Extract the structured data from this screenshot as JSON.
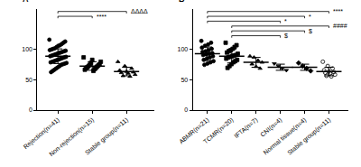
{
  "chart_data": [
    {
      "type": "scatter",
      "panel": "A",
      "color": "#000000",
      "grid": false,
      "categories": [
        "Rejection(n=41)",
        "Non-rejection(n=15)",
        "Stable group(n=11)"
      ],
      "groups": [
        {
          "marker": "circle",
          "values": [
            115,
            112,
            110,
            108,
            106,
            105,
            103,
            101,
            100,
            99,
            98,
            97,
            96,
            95,
            94,
            93,
            92,
            91,
            90,
            89,
            88,
            87,
            86,
            85,
            84,
            83,
            82,
            81,
            80,
            79,
            78,
            77,
            76,
            75,
            74,
            72,
            70,
            68,
            66,
            64,
            62
          ],
          "mean": 88,
          "sd": 12
        },
        {
          "marker": "square",
          "values": [
            86,
            82,
            79,
            77,
            75,
            74,
            73,
            72,
            71,
            70,
            69,
            68,
            67,
            66,
            64
          ],
          "mean": 72,
          "sd": 7
        },
        {
          "marker": "triangle-up",
          "values": [
            79,
            72,
            68,
            65,
            63,
            62,
            61,
            60,
            58,
            56,
            55
          ],
          "mean": 63,
          "sd": 7
        }
      ],
      "ylim": [
        0,
        165
      ],
      "yticks": [
        0,
        50,
        100
      ],
      "significance": [
        {
          "pair": [
            "Rejection(n=41)",
            "Stable group(n=11)"
          ],
          "label": "ΔΔΔΔ"
        },
        {
          "pair": [
            "Rejection(n=41)",
            "Non-rejection(n=15)"
          ],
          "label": "****"
        }
      ]
    },
    {
      "type": "scatter",
      "panel": "B",
      "color": "#000000",
      "grid": false,
      "categories": [
        "ABMR(n=21)",
        "TCMR(n=20)",
        "IFTA(n=7)",
        "CNI(n=4)",
        "Normal tissue(n=4)",
        "Stable group(n=11)"
      ],
      "groups": [
        {
          "marker": "circle",
          "values": [
            113,
            110,
            107,
            105,
            102,
            100,
            98,
            96,
            95,
            93,
            92,
            91,
            90,
            88,
            86,
            84,
            82,
            80,
            78,
            76,
            74
          ],
          "mean": 92,
          "sd": 11
        },
        {
          "marker": "square",
          "values": [
            110,
            106,
            103,
            100,
            98,
            96,
            94,
            92,
            90,
            89,
            88,
            87,
            86,
            84,
            82,
            80,
            78,
            75,
            72,
            69
          ],
          "mean": 88,
          "sd": 11
        },
        {
          "marker": "triangle-up",
          "values": [
            88,
            86,
            81,
            78,
            75,
            71,
            68
          ],
          "mean": 78,
          "sd": 8
        },
        {
          "marker": "triangle-down",
          "values": [
            76,
            72,
            68,
            65
          ],
          "mean": 70,
          "sd": 5
        },
        {
          "marker": "diamond",
          "values": [
            77,
            72,
            68,
            64
          ],
          "mean": 70,
          "sd": 5
        },
        {
          "marker": "circle-open",
          "values": [
            79,
            72,
            68,
            65,
            63,
            62,
            61,
            60,
            58,
            56,
            55
          ],
          "mean": 63,
          "sd": 7
        }
      ],
      "ylim": [
        0,
        165
      ],
      "yticks": [
        0,
        50,
        100
      ],
      "significance": [
        {
          "pair": [
            "ABMR(n=21)",
            "Stable group(n=11)"
          ],
          "label": "****"
        },
        {
          "pair": [
            "ABMR(n=21)",
            "Normal tissue(n=4)"
          ],
          "label": "*"
        },
        {
          "pair": [
            "ABMR(n=21)",
            "CNI(n=4)"
          ],
          "label": "*"
        },
        {
          "pair": [
            "TCMR(n=20)",
            "Stable group(n=11)"
          ],
          "label": "####"
        },
        {
          "pair": [
            "TCMR(n=20)",
            "Normal tissue(n=4)"
          ],
          "label": "$"
        },
        {
          "pair": [
            "TCMR(n=20)",
            "CNI(n=4)"
          ],
          "label": "$"
        }
      ]
    }
  ]
}
